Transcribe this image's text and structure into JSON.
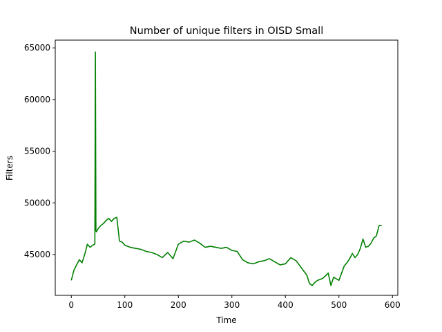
{
  "chart_data": {
    "type": "line",
    "title": "Number of unique filters in OISD Small",
    "xlabel": "Time",
    "ylabel": "Filters",
    "xlim": [
      -30,
      610
    ],
    "ylim": [
      41050,
      65750
    ],
    "xticks": [
      0,
      100,
      200,
      300,
      400,
      500,
      600
    ],
    "yticks": [
      45000,
      50000,
      55000,
      60000,
      65000
    ],
    "grid": false,
    "legend": "none",
    "series": [
      {
        "color": "#008000",
        "x": [
          0,
          5,
          10,
          15,
          20,
          25,
          30,
          35,
          40,
          44,
          45,
          46,
          47,
          50,
          55,
          60,
          65,
          70,
          75,
          80,
          85,
          90,
          95,
          100,
          110,
          120,
          130,
          140,
          150,
          160,
          170,
          180,
          190,
          200,
          210,
          220,
          230,
          240,
          250,
          260,
          270,
          280,
          290,
          300,
          310,
          320,
          330,
          340,
          350,
          360,
          370,
          380,
          390,
          400,
          410,
          420,
          430,
          440,
          445,
          450,
          455,
          460,
          470,
          480,
          485,
          490,
          500,
          510,
          515,
          520,
          525,
          530,
          535,
          540,
          545,
          550,
          555,
          560,
          565,
          570,
          575,
          580
        ],
        "y": [
          42500,
          43500,
          44000,
          44500,
          44200,
          45000,
          46000,
          45700,
          45900,
          46000,
          64600,
          47300,
          47200,
          47500,
          47800,
          48000,
          48300,
          48500,
          48200,
          48500,
          48600,
          46300,
          46200,
          45900,
          45700,
          45600,
          45500,
          45300,
          45200,
          45000,
          44700,
          45200,
          44600,
          46000,
          46300,
          46200,
          46400,
          46100,
          45700,
          45800,
          45700,
          45600,
          45700,
          45400,
          45300,
          44500,
          44200,
          44100,
          44300,
          44400,
          44600,
          44300,
          44000,
          44100,
          44700,
          44400,
          43700,
          43000,
          42200,
          42000,
          42300,
          42500,
          42700,
          43200,
          42000,
          42800,
          42500,
          43900,
          44200,
          44600,
          45100,
          44700,
          45000,
          45600,
          46500,
          45700,
          45800,
          46100,
          46600,
          46800,
          47800,
          47800
        ]
      }
    ]
  }
}
